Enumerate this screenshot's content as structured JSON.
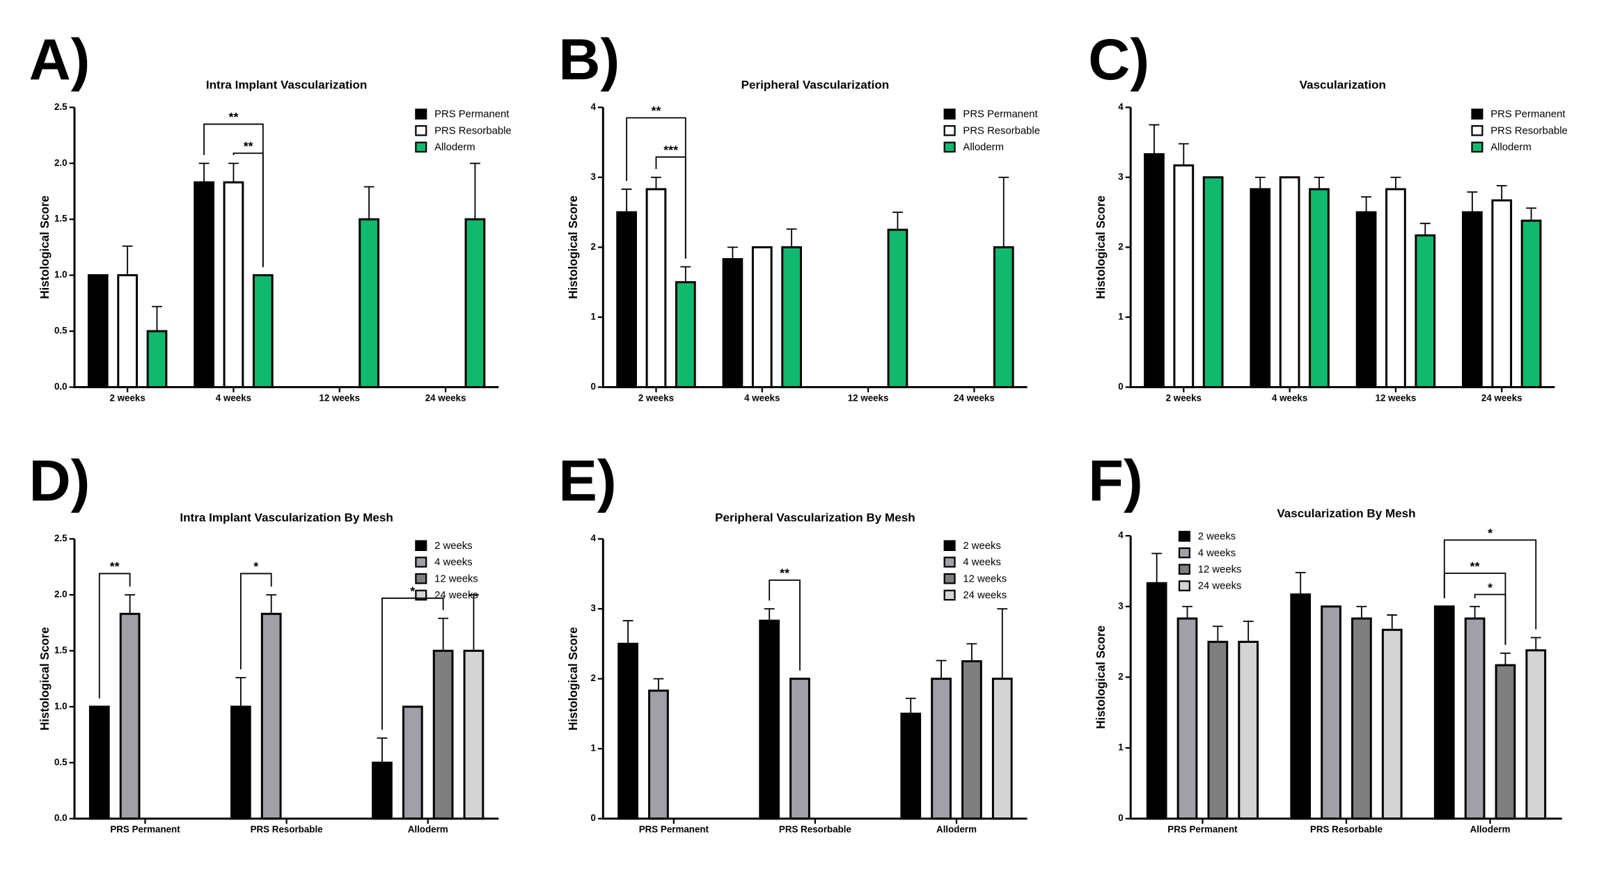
{
  "chart_data": [
    {
      "type": "bar",
      "panel_label": "A)",
      "title": "Intra Implant Vascularization",
      "ylabel": "Histological Score",
      "categories": [
        "2 weeks",
        "4 weeks",
        "12 weeks",
        "24 weeks"
      ],
      "series": [
        {
          "name": "PRS Permanent",
          "color": "#000000",
          "values": [
            1.0,
            1.83,
            null,
            null
          ],
          "errors": [
            0,
            0.17,
            null,
            null
          ]
        },
        {
          "name": "PRS Resorbable",
          "color": "#ffffff",
          "values": [
            1.0,
            1.83,
            null,
            null
          ],
          "errors": [
            0.26,
            0.17,
            null,
            null
          ]
        },
        {
          "name": "Alloderm",
          "color": "#10b96e",
          "values": [
            0.5,
            1.0,
            1.5,
            1.5
          ],
          "errors": [
            0.22,
            0,
            0.29,
            0.5
          ]
        }
      ],
      "ylim": [
        0,
        2.5
      ],
      "yticks": [
        {
          "value": 0,
          "label": "0.0"
        },
        0.5,
        {
          "value": 1,
          "label": "1.0"
        },
        1.5,
        {
          "value": 2,
          "label": "2.0"
        },
        2.5
      ],
      "legend": "upper right",
      "annotations": [
        {
          "text": "**"
        },
        {
          "text": "**"
        }
      ]
    },
    {
      "type": "bar",
      "panel_label": "B)",
      "title": "Peripheral Vascularization",
      "ylabel": "Histological Score",
      "categories": [
        "2 weeks",
        "4 weeks",
        "12 weeks",
        "24 weeks"
      ],
      "series": [
        {
          "name": "PRS Permanent",
          "color": "#000000",
          "values": [
            2.5,
            1.83,
            null,
            null
          ],
          "errors": [
            0.33,
            0.17,
            null,
            null
          ]
        },
        {
          "name": "PRS Resorbable",
          "color": "#ffffff",
          "values": [
            2.83,
            2.0,
            null,
            null
          ],
          "errors": [
            0.17,
            0,
            null,
            null
          ]
        },
        {
          "name": "Alloderm",
          "color": "#10b96e",
          "values": [
            1.5,
            2.0,
            2.25,
            2.0
          ],
          "errors": [
            0.22,
            0.26,
            0.25,
            1.0
          ]
        }
      ],
      "ylim": [
        0,
        4
      ],
      "yticks": [
        0,
        1,
        2,
        3,
        4
      ],
      "legend": "upper right",
      "annotations": [
        {
          "text": "**"
        },
        {
          "text": "***"
        }
      ]
    },
    {
      "type": "bar",
      "panel_label": "C)",
      "title": "Vascularization",
      "ylabel": "Histological Score",
      "categories": [
        "2 weeks",
        "4 weeks",
        "12 weeks",
        "24 weeks"
      ],
      "series": [
        {
          "name": "PRS Permanent",
          "color": "#000000",
          "values": [
            3.33,
            2.83,
            2.5,
            2.5
          ],
          "errors": [
            0.42,
            0.17,
            0.22,
            0.29
          ]
        },
        {
          "name": "PRS Resorbable",
          "color": "#ffffff",
          "values": [
            3.17,
            3.0,
            2.83,
            2.67
          ],
          "errors": [
            0.31,
            0,
            0.17,
            0.21
          ]
        },
        {
          "name": "Alloderm",
          "color": "#10b96e",
          "values": [
            3.0,
            2.83,
            2.17,
            2.38
          ],
          "errors": [
            0,
            0.17,
            0.17,
            0.18
          ]
        }
      ],
      "ylim": [
        0,
        4
      ],
      "yticks": [
        0,
        1,
        2,
        3,
        4
      ],
      "legend": "upper right",
      "annotations": []
    },
    {
      "type": "bar",
      "panel_label": "D)",
      "title": "Intra Implant Vascularization By Mesh",
      "ylabel": "Histological Score",
      "categories": [
        "PRS Permanent",
        "PRS Resorbable",
        "Alloderm"
      ],
      "series": [
        {
          "name": "2 weeks",
          "color": "#000000",
          "values": [
            1.0,
            1.0,
            0.5
          ],
          "errors": [
            0,
            0.26,
            0.22
          ]
        },
        {
          "name": "4 weeks",
          "color": "#a0a0a6",
          "values": [
            1.83,
            1.83,
            1.0
          ],
          "errors": [
            0.17,
            0.17,
            0
          ]
        },
        {
          "name": "12 weeks",
          "color": "#7f7f7f",
          "values": [
            null,
            null,
            1.5
          ],
          "errors": [
            null,
            null,
            0.29
          ]
        },
        {
          "name": "24 weeks",
          "color": "#d4d4d4",
          "values": [
            null,
            null,
            1.5
          ],
          "errors": [
            null,
            null,
            0.5
          ]
        }
      ],
      "ylim": [
        0,
        2.5
      ],
      "yticks": [
        {
          "value": 0,
          "label": "0.0"
        },
        0.5,
        {
          "value": 1,
          "label": "1.0"
        },
        1.5,
        {
          "value": 2,
          "label": "2.0"
        },
        2.5
      ],
      "legend": "upper right",
      "annotations": [
        {
          "text": "**"
        },
        {
          "text": "*"
        },
        {
          "text": "*"
        }
      ]
    },
    {
      "type": "bar",
      "panel_label": "E)",
      "title": "Peripheral Vascularization By Mesh",
      "ylabel": "Histological Score",
      "categories": [
        "PRS Permanent",
        "PRS Resorbable",
        "Alloderm"
      ],
      "series": [
        {
          "name": "2 weeks",
          "color": "#000000",
          "values": [
            2.5,
            2.83,
            1.5
          ],
          "errors": [
            0.33,
            0.17,
            0.22
          ]
        },
        {
          "name": "4 weeks",
          "color": "#a0a0a6",
          "values": [
            1.83,
            2.0,
            2.0
          ],
          "errors": [
            0.17,
            0,
            0.26
          ]
        },
        {
          "name": "12 weeks",
          "color": "#7f7f7f",
          "values": [
            null,
            null,
            2.25
          ],
          "errors": [
            null,
            null,
            0.25
          ]
        },
        {
          "name": "24 weeks",
          "color": "#d4d4d4",
          "values": [
            null,
            null,
            2.0
          ],
          "errors": [
            null,
            null,
            1.0
          ]
        }
      ],
      "ylim": [
        0,
        4
      ],
      "yticks": [
        0,
        1,
        2,
        3,
        4
      ],
      "legend": "upper right",
      "annotations": [
        {
          "text": "**"
        }
      ]
    },
    {
      "type": "bar",
      "panel_label": "F)",
      "title": "Vascularization By Mesh",
      "ylabel": "Histological Score",
      "categories": [
        "PRS Permanent",
        "PRS Resorbable",
        "Alloderm"
      ],
      "series": [
        {
          "name": "2 weeks",
          "color": "#000000",
          "values": [
            3.33,
            3.17,
            3.0
          ],
          "errors": [
            0.42,
            0.31,
            0
          ]
        },
        {
          "name": "4 weeks",
          "color": "#a0a0a6",
          "values": [
            2.83,
            3.0,
            2.83
          ],
          "errors": [
            0.17,
            0,
            0.17
          ]
        },
        {
          "name": "12 weeks",
          "color": "#7f7f7f",
          "values": [
            2.5,
            2.83,
            2.17
          ],
          "errors": [
            0.22,
            0.17,
            0.17
          ]
        },
        {
          "name": "24 weeks",
          "color": "#d4d4d4",
          "values": [
            2.5,
            2.67,
            2.38
          ],
          "errors": [
            0.29,
            0.21,
            0.18
          ]
        }
      ],
      "ylim": [
        0,
        4
      ],
      "yticks": [
        0,
        1,
        2,
        3,
        4
      ],
      "legend": "upper left",
      "annotations": [
        {
          "text": "*"
        },
        {
          "text": "**"
        },
        {
          "text": "*"
        }
      ]
    }
  ]
}
